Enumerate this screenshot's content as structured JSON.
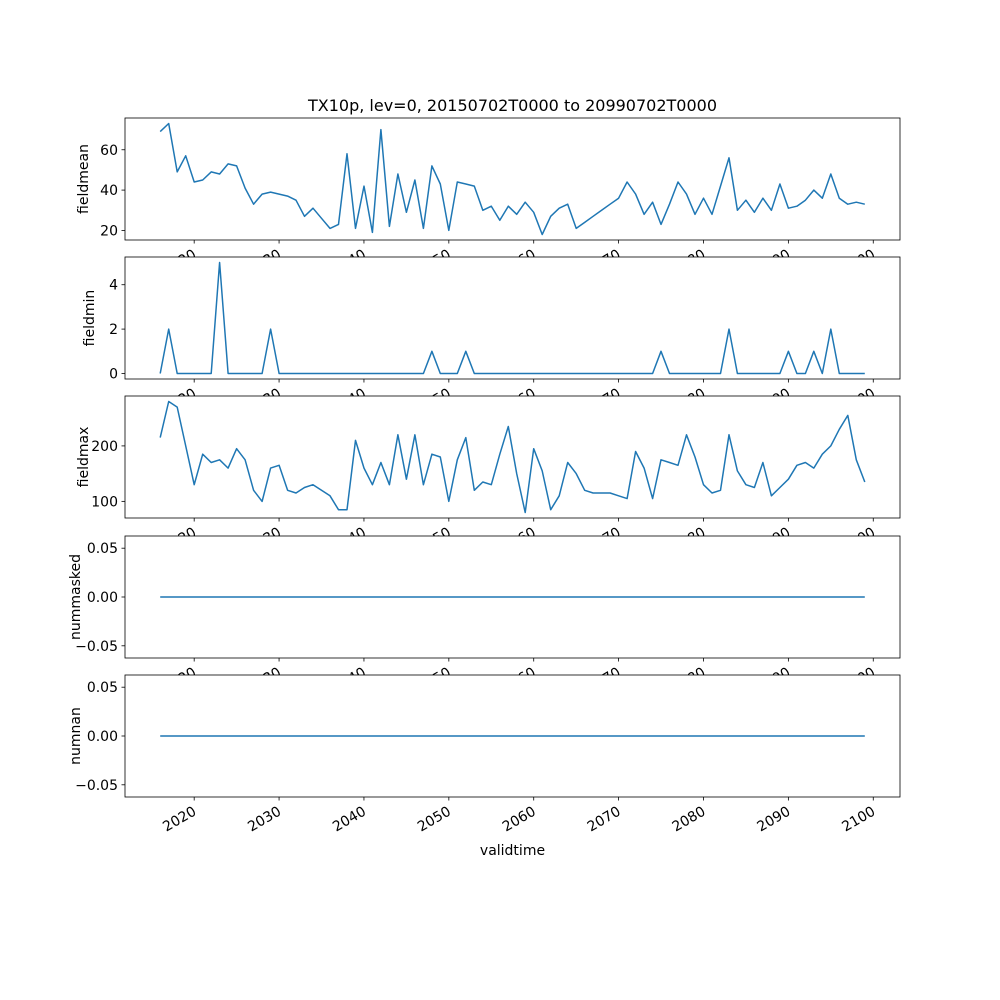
{
  "chart_data": {
    "type": "line",
    "title": "TX10p, lev=0, 20150702T0000 to 20990702T0000",
    "xlabel": "validtime",
    "line_color": "#1f77b4",
    "grid": false,
    "legend": false,
    "xlim": [
      2011.85,
      2103.15
    ],
    "x_ticks": [
      2020,
      2030,
      2040,
      2050,
      2060,
      2070,
      2080,
      2090,
      2100
    ],
    "x": [
      2016,
      2017,
      2018,
      2019,
      2020,
      2021,
      2022,
      2023,
      2024,
      2025,
      2026,
      2027,
      2028,
      2029,
      2030,
      2031,
      2032,
      2033,
      2034,
      2035,
      2036,
      2037,
      2038,
      2039,
      2040,
      2041,
      2042,
      2043,
      2044,
      2045,
      2046,
      2047,
      2048,
      2049,
      2050,
      2051,
      2052,
      2053,
      2054,
      2055,
      2056,
      2057,
      2058,
      2059,
      2060,
      2061,
      2062,
      2063,
      2064,
      2065,
      2066,
      2067,
      2068,
      2069,
      2070,
      2071,
      2072,
      2073,
      2074,
      2075,
      2076,
      2077,
      2078,
      2079,
      2080,
      2081,
      2082,
      2083,
      2084,
      2085,
      2086,
      2087,
      2088,
      2089,
      2090,
      2091,
      2092,
      2093,
      2094,
      2095,
      2096,
      2097,
      2098,
      2099
    ],
    "panels": [
      {
        "ylabel": "fieldmean",
        "ylim": [
          15.25,
          75.75
        ],
        "yticks": [
          20,
          40,
          60
        ],
        "ytick_labels": [
          "20",
          "40",
          "60"
        ],
        "values": [
          69,
          73,
          49,
          57,
          44,
          45,
          49,
          48,
          53,
          52,
          41,
          33,
          38,
          39,
          38,
          37,
          35,
          27,
          31,
          26,
          21,
          23,
          58,
          21,
          42,
          19,
          70,
          22,
          48,
          29,
          45,
          21,
          52,
          43,
          20,
          44,
          43,
          42,
          30,
          32,
          25,
          32,
          28,
          34,
          29,
          18,
          27,
          31,
          33,
          21,
          24,
          27,
          30,
          33,
          36,
          44,
          38,
          28,
          34,
          23,
          33,
          44,
          38,
          28,
          36,
          28,
          42,
          56,
          30,
          35,
          29,
          36,
          30,
          43,
          31,
          32,
          35,
          40,
          36,
          48,
          36,
          33,
          34,
          33
        ]
      },
      {
        "ylabel": "fieldmin",
        "ylim": [
          -0.25,
          5.25
        ],
        "yticks": [
          0,
          2,
          4
        ],
        "ytick_labels": [
          "0",
          "2",
          "4"
        ],
        "values": [
          0,
          2,
          0,
          0,
          0,
          0,
          0,
          5,
          0,
          0,
          0,
          0,
          0,
          2,
          0,
          0,
          0,
          0,
          0,
          0,
          0,
          0,
          0,
          0,
          0,
          0,
          0,
          0,
          0,
          0,
          0,
          0,
          1,
          0,
          0,
          0,
          1,
          0,
          0,
          0,
          0,
          0,
          0,
          0,
          0,
          0,
          0,
          0,
          0,
          0,
          0,
          0,
          0,
          0,
          0,
          0,
          0,
          0,
          0,
          1,
          0,
          0,
          0,
          0,
          0,
          0,
          0,
          2,
          0,
          0,
          0,
          0,
          0,
          0,
          1,
          0,
          0,
          1,
          0,
          2,
          0,
          0,
          0,
          0
        ]
      },
      {
        "ylabel": "fieldmax",
        "ylim": [
          70,
          290
        ],
        "yticks": [
          100,
          200
        ],
        "ytick_labels": [
          "100",
          "200"
        ],
        "values": [
          215,
          280,
          270,
          200,
          130,
          185,
          170,
          175,
          160,
          195,
          175,
          120,
          100,
          160,
          165,
          120,
          115,
          125,
          130,
          120,
          110,
          85,
          85,
          210,
          160,
          130,
          170,
          130,
          220,
          140,
          220,
          130,
          185,
          180,
          100,
          175,
          215,
          120,
          135,
          130,
          185,
          235,
          150,
          80,
          195,
          155,
          85,
          110,
          170,
          150,
          120,
          115,
          115,
          115,
          110,
          105,
          190,
          160,
          105,
          175,
          170,
          165,
          220,
          180,
          130,
          115,
          120,
          220,
          155,
          130,
          125,
          170,
          110,
          125,
          140,
          165,
          170,
          160,
          185,
          200,
          230,
          255,
          175,
          135
        ]
      },
      {
        "ylabel": "nummasked",
        "ylim": [
          -0.0625,
          0.0625
        ],
        "yticks": [
          -0.05,
          0.0,
          0.05
        ],
        "ytick_labels": [
          "−0.05",
          "0.00",
          "0.05"
        ],
        "constant": 0
      },
      {
        "ylabel": "numnan",
        "ylim": [
          -0.0625,
          0.0625
        ],
        "yticks": [
          -0.05,
          0.0,
          0.05
        ],
        "ytick_labels": [
          "−0.05",
          "0.00",
          "0.05"
        ],
        "constant": 0
      }
    ]
  }
}
